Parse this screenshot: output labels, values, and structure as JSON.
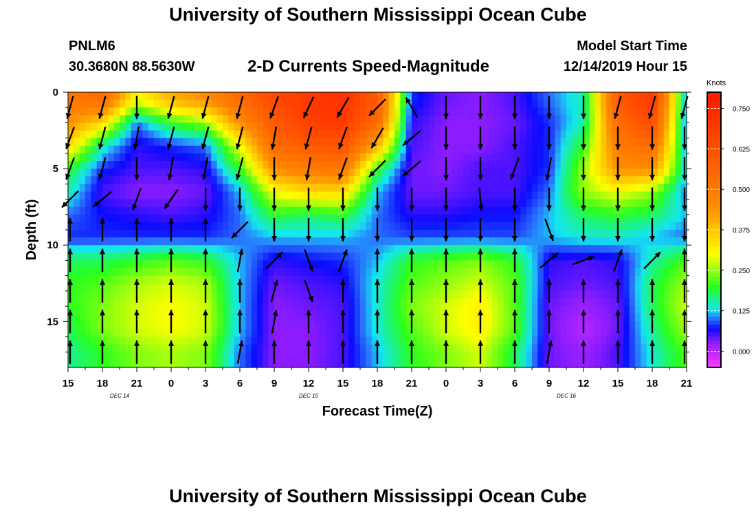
{
  "header": {
    "title": "University of Southern Mississippi Ocean Cube",
    "station": "PNLM6",
    "coordinates": "30.3680N 88.5630W",
    "plot_title": "2-D Currents Speed-Magnitude",
    "model_start_label": "Model Start Time",
    "model_start_value": "12/14/2019 Hour 15"
  },
  "footer": {
    "title": "University of Southern Mississippi Ocean Cube"
  },
  "chart_data": {
    "type": "heatmap",
    "title": "2-D Currents Speed-Magnitude",
    "xlabel": "Forecast Time(Z)",
    "ylabel": "Depth (ft)",
    "x_range_hours": [
      0,
      54
    ],
    "ylim": [
      0,
      18
    ],
    "x_tick_labels": [
      "15",
      "18",
      "21",
      "0",
      "3",
      "6",
      "9",
      "12",
      "15",
      "18",
      "21",
      "0",
      "3",
      "6",
      "9",
      "12",
      "15",
      "18",
      "21"
    ],
    "y_ticks": [
      0,
      5,
      10,
      15
    ],
    "date_labels": [
      {
        "text": "DEC 14",
        "hour": 4.5
      },
      {
        "text": "DEC 15",
        "hour": 21
      },
      {
        "text": "DEC 16",
        "hour": 43.5
      }
    ],
    "colorbar": {
      "label": "Knots",
      "range": [
        -0.05,
        0.8
      ],
      "ticks": [
        "0.000",
        "0.125",
        "0.250",
        "0.375",
        "0.500",
        "0.625",
        "0.750"
      ],
      "tick_values": [
        0,
        0.125,
        0.25,
        0.375,
        0.5,
        0.625,
        0.75
      ]
    },
    "colors": {
      "magenta": "#ff3cff",
      "purple": "#8c1cff",
      "blue": "#0a0aff",
      "blue2": "#2a6cff",
      "cyan": "#14e6f0",
      "green": "#28ff1e",
      "yellow": "#ffff00",
      "orange": "#ff8c00",
      "red": "#ff1e00"
    },
    "depth_layers_ft": [
      0.5,
      2,
      3.5,
      5,
      6.5,
      8,
      9.5,
      11,
      12.5,
      14,
      15.5,
      17
    ],
    "speed_field_knots": {
      "note": "rows = depth layers above, columns = 3-hourly times 0..54",
      "rows": [
        [
          0.5,
          0.55,
          0.3,
          0.4,
          0.45,
          0.55,
          0.65,
          0.7,
          0.72,
          0.6,
          0.08,
          0.04,
          0.03,
          0.05,
          0.1,
          0.15,
          0.6,
          0.7,
          0.1
        ],
        [
          0.45,
          0.35,
          0.1,
          0.2,
          0.25,
          0.45,
          0.6,
          0.68,
          0.7,
          0.55,
          0.06,
          0.03,
          0.03,
          0.04,
          0.08,
          0.15,
          0.55,
          0.65,
          0.08
        ],
        [
          0.35,
          0.15,
          0.06,
          0.08,
          0.1,
          0.3,
          0.55,
          0.6,
          0.62,
          0.4,
          0.05,
          0.03,
          0.03,
          0.05,
          0.08,
          0.2,
          0.5,
          0.55,
          0.1
        ],
        [
          0.2,
          0.08,
          0.05,
          0.05,
          0.06,
          0.2,
          0.45,
          0.5,
          0.52,
          0.2,
          0.04,
          0.03,
          0.05,
          0.05,
          0.08,
          0.25,
          0.45,
          0.45,
          0.12
        ],
        [
          0.15,
          0.05,
          0.03,
          0.03,
          0.04,
          0.12,
          0.3,
          0.35,
          0.35,
          0.12,
          0.04,
          0.04,
          0.05,
          0.05,
          0.1,
          0.25,
          0.3,
          0.25,
          0.1
        ],
        [
          0.1,
          0.07,
          0.06,
          0.05,
          0.06,
          0.1,
          0.2,
          0.18,
          0.2,
          0.1,
          0.06,
          0.06,
          0.07,
          0.07,
          0.12,
          0.18,
          0.2,
          0.18,
          0.12
        ],
        [
          0.08,
          0.08,
          0.08,
          0.08,
          0.08,
          0.1,
          0.12,
          0.12,
          0.12,
          0.1,
          0.09,
          0.09,
          0.09,
          0.09,
          0.12,
          0.14,
          0.14,
          0.12,
          0.1
        ],
        [
          0.18,
          0.18,
          0.2,
          0.22,
          0.2,
          0.12,
          0.06,
          0.07,
          0.08,
          0.12,
          0.2,
          0.22,
          0.24,
          0.2,
          0.06,
          0.05,
          0.06,
          0.15,
          0.22
        ],
        [
          0.2,
          0.22,
          0.26,
          0.28,
          0.26,
          0.12,
          0.04,
          0.05,
          0.06,
          0.14,
          0.22,
          0.25,
          0.28,
          0.22,
          0.05,
          0.04,
          0.05,
          0.18,
          0.26
        ],
        [
          0.2,
          0.24,
          0.28,
          0.3,
          0.28,
          0.12,
          0.03,
          0.04,
          0.05,
          0.14,
          0.24,
          0.28,
          0.32,
          0.22,
          0.04,
          0.02,
          0.04,
          0.18,
          0.28
        ],
        [
          0.18,
          0.24,
          0.28,
          0.3,
          0.28,
          0.12,
          0.03,
          0.03,
          0.05,
          0.14,
          0.22,
          0.28,
          0.32,
          0.22,
          0.04,
          0.0,
          0.04,
          0.16,
          0.26
        ],
        [
          0.16,
          0.2,
          0.24,
          0.26,
          0.24,
          0.1,
          0.03,
          0.03,
          0.05,
          0.12,
          0.2,
          0.24,
          0.28,
          0.18,
          0.04,
          0.02,
          0.05,
          0.14,
          0.22
        ]
      ]
    },
    "vector_field": {
      "note": "direction in degrees (0 = up / north, clockwise), shown as black arrows",
      "depths_ft": [
        1,
        3,
        5,
        7,
        9,
        11,
        13,
        15,
        17
      ],
      "directions_deg": [
        [
          195,
          195,
          180,
          195,
          195,
          195,
          200,
          205,
          210,
          225,
          330,
          180,
          180,
          180,
          180,
          180,
          195,
          195,
          195
        ],
        [
          200,
          195,
          190,
          195,
          195,
          195,
          190,
          195,
          200,
          210,
          230,
          180,
          180,
          180,
          180,
          180,
          180,
          180,
          180
        ],
        [
          200,
          195,
          180,
          190,
          190,
          195,
          180,
          190,
          200,
          225,
          230,
          180,
          180,
          200,
          190,
          180,
          180,
          180,
          180
        ],
        [
          225,
          230,
          200,
          215,
          180,
          180,
          180,
          180,
          180,
          180,
          180,
          180,
          175,
          180,
          180,
          180,
          180,
          180,
          180
        ],
        [
          0,
          0,
          0,
          0,
          0,
          225,
          180,
          180,
          180,
          180,
          180,
          180,
          180,
          180,
          160,
          180,
          180,
          180,
          180
        ],
        [
          0,
          0,
          0,
          0,
          0,
          10,
          45,
          160,
          20,
          0,
          0,
          0,
          0,
          0,
          50,
          70,
          20,
          45,
          0
        ],
        [
          0,
          0,
          0,
          0,
          0,
          0,
          15,
          160,
          0,
          0,
          0,
          0,
          0,
          0,
          0,
          0,
          0,
          0,
          0
        ],
        [
          0,
          0,
          0,
          0,
          0,
          0,
          10,
          0,
          0,
          0,
          0,
          0,
          0,
          0,
          0,
          0,
          0,
          0,
          0
        ],
        [
          0,
          0,
          0,
          0,
          0,
          10,
          0,
          0,
          0,
          0,
          0,
          0,
          0,
          0,
          10,
          0,
          0,
          0,
          0
        ]
      ]
    }
  }
}
